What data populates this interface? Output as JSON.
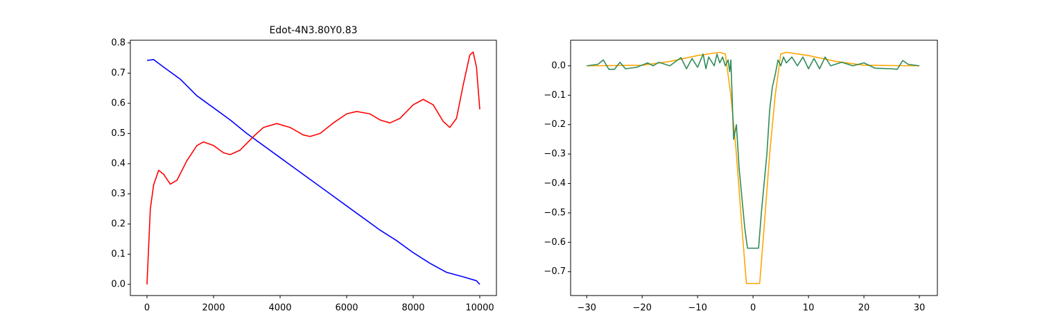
{
  "chart_data": [
    {
      "type": "line",
      "title": "Edot-4N3.80Y0.83",
      "xlim": [
        -500,
        10500
      ],
      "ylim": [
        -0.037,
        0.809
      ],
      "xticks": [
        0,
        2000,
        4000,
        6000,
        8000,
        10000
      ],
      "yticks": [
        {
          "value": 0,
          "label": "0.0"
        },
        {
          "value": 0.1,
          "label": "0.1"
        },
        {
          "value": 0.2,
          "label": "0.2"
        },
        {
          "value": 0.3,
          "label": "0.3"
        },
        {
          "value": 0.4,
          "label": "0.4"
        },
        {
          "value": 0.5,
          "label": "0.5"
        },
        {
          "value": 0.6,
          "label": "0.6"
        },
        {
          "value": 0.7,
          "label": "0.7"
        },
        {
          "value": 0.8,
          "label": "0.8"
        }
      ],
      "series": [
        {
          "color": "#0000ff",
          "x": [
            0,
            200,
            500,
            1000,
            1500,
            2000,
            2500,
            3000,
            3500,
            4000,
            4500,
            5000,
            5500,
            6000,
            6500,
            7000,
            7500,
            8000,
            8500,
            9000,
            9500,
            9900,
            10000
          ],
          "values": [
            0.742,
            0.745,
            0.72,
            0.68,
            0.625,
            0.585,
            0.545,
            0.5,
            0.46,
            0.42,
            0.38,
            0.34,
            0.3,
            0.26,
            0.22,
            0.18,
            0.145,
            0.105,
            0.07,
            0.04,
            0.025,
            0.012,
            0.0
          ]
        },
        {
          "color": "#ff0000",
          "x": [
            0,
            100,
            200,
            350,
            500,
            700,
            900,
            1200,
            1500,
            1700,
            2000,
            2300,
            2500,
            2800,
            3200,
            3500,
            3900,
            4300,
            4700,
            4900,
            5200,
            5600,
            6000,
            6300,
            6700,
            7000,
            7300,
            7600,
            8000,
            8300,
            8600,
            8900,
            9100,
            9300,
            9500,
            9700,
            9800,
            9900,
            10000
          ],
          "values": [
            0.0,
            0.25,
            0.33,
            0.378,
            0.365,
            0.332,
            0.345,
            0.41,
            0.46,
            0.472,
            0.46,
            0.436,
            0.43,
            0.445,
            0.49,
            0.52,
            0.533,
            0.52,
            0.495,
            0.49,
            0.5,
            0.535,
            0.565,
            0.573,
            0.565,
            0.545,
            0.535,
            0.55,
            0.595,
            0.613,
            0.595,
            0.54,
            0.52,
            0.55,
            0.66,
            0.76,
            0.77,
            0.72,
            0.58
          ]
        }
      ]
    },
    {
      "type": "line",
      "xlim": [
        -32.9,
        33.25
      ],
      "ylim": [
        -0.781,
        0.087
      ],
      "xticks": [
        {
          "value": -30,
          "label": "−30"
        },
        {
          "value": -20,
          "label": "−20"
        },
        {
          "value": -10,
          "label": "−10"
        },
        0,
        10,
        20,
        30
      ],
      "yticks": [
        {
          "value": 0,
          "label": "0.0"
        },
        {
          "value": -0.1,
          "label": "−0.1"
        },
        {
          "value": -0.2,
          "label": "−0.2"
        },
        {
          "value": -0.3,
          "label": "−0.3"
        },
        {
          "value": -0.4,
          "label": "−0.4"
        },
        {
          "value": -0.5,
          "label": "−0.5"
        },
        {
          "value": -0.6,
          "label": "−0.6"
        },
        {
          "value": -0.7,
          "label": "−0.7"
        }
      ],
      "series": [
        {
          "color": "#ffa500",
          "x": [
            -30,
            -20,
            -15,
            -10,
            -6,
            -5,
            -4,
            -3,
            -2,
            -1.2,
            1.2,
            2,
            3,
            4,
            5,
            6,
            10,
            15,
            20,
            30
          ],
          "values": [
            0,
            0.002,
            0.015,
            0.035,
            0.046,
            0.04,
            -0.1,
            -0.3,
            -0.55,
            -0.74,
            -0.74,
            -0.55,
            -0.3,
            -0.1,
            0.04,
            0.046,
            0.035,
            0.015,
            0.002,
            0
          ]
        },
        {
          "color": "#2e8b57",
          "x": [
            -30,
            -28,
            -27,
            -26,
            -25,
            -24,
            -23,
            -21,
            -19,
            -18,
            -17,
            -15,
            -13,
            -12,
            -11,
            -10,
            -9,
            -8.5,
            -8,
            -7,
            -6.5,
            -6,
            -5.5,
            -5,
            -4.5,
            -4.2,
            -4,
            -3.5,
            -3,
            -2.5,
            -2,
            -1.5,
            -1,
            1,
            1.5,
            2,
            2.5,
            3,
            3.5,
            4,
            4.5,
            5,
            5.5,
            6,
            7,
            8,
            9,
            10,
            11,
            12,
            13,
            14,
            16,
            18,
            20,
            22,
            25,
            26,
            27,
            28,
            30
          ],
          "values": [
            0,
            0.005,
            0.02,
            -0.012,
            -0.012,
            0.012,
            -0.01,
            -0.005,
            0.01,
            0.0,
            0.012,
            0.0,
            0.028,
            -0.01,
            0.025,
            -0.005,
            0.04,
            -0.01,
            0.03,
            0.0,
            0.04,
            0.01,
            0.03,
            0.0,
            0.02,
            -0.02,
            0.02,
            -0.25,
            -0.2,
            -0.35,
            -0.45,
            -0.55,
            -0.62,
            -0.62,
            -0.5,
            -0.4,
            -0.3,
            -0.15,
            -0.07,
            -0.03,
            0.02,
            0.0,
            0.03,
            0.01,
            0.03,
            0.0,
            0.03,
            -0.01,
            0.025,
            -0.01,
            0.03,
            0.0,
            0.012,
            0.0,
            0.01,
            -0.008,
            -0.01,
            -0.012,
            0.018,
            0.005,
            0
          ]
        }
      ]
    }
  ]
}
